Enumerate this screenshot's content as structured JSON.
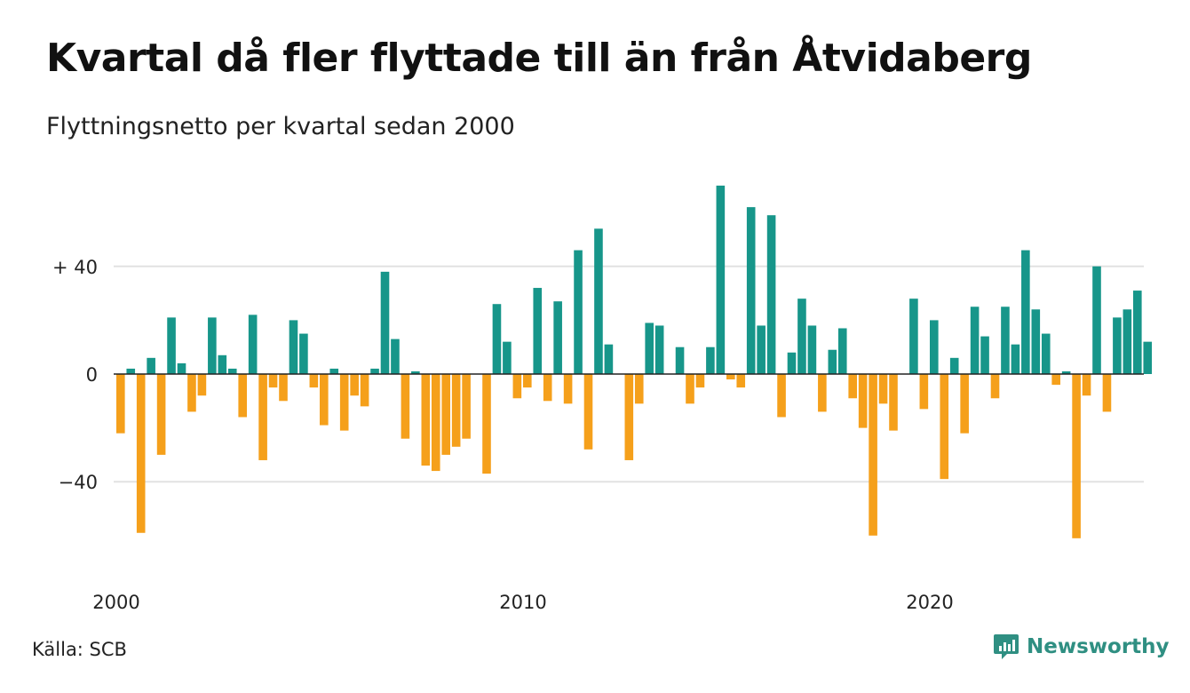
{
  "header": {
    "title": "Kvartal då fler flyttade till än från Åtvidaberg",
    "subtitle": "Flyttningsnetto per kvartal sedan 2000"
  },
  "footer": {
    "source": "Källa: SCB",
    "brand": "Newsworthy",
    "brand_icon": "newsworthy-chart-logo-icon"
  },
  "colors": {
    "positive": "#17968a",
    "negative": "#f5a01b",
    "grid": "#e2e2e2",
    "zero_line": "#222222",
    "text": "#111111",
    "brand": "#2f8f82"
  },
  "chart_data": {
    "type": "bar",
    "title": "Kvartal då fler flyttade till än från Åtvidaberg",
    "subtitle": "Flyttningsnetto per kvartal sedan 2000",
    "x_unit": "quarter",
    "start": "2000-Q1",
    "x_tick_labels": [
      "2000",
      "2010",
      "2020"
    ],
    "y_ticks": [
      {
        "value": 40,
        "label": "+ 40"
      },
      {
        "value": 0,
        "label": "0"
      },
      {
        "value": -40,
        "label": "−40"
      }
    ],
    "ylim": [
      -66,
      72
    ],
    "grid": true,
    "values": [
      -22,
      2,
      -59,
      6,
      -30,
      21,
      4,
      -14,
      -8,
      21,
      7,
      2,
      -16,
      22,
      -32,
      -5,
      -10,
      20,
      15,
      -5,
      -19,
      2,
      -21,
      -8,
      -12,
      2,
      38,
      13,
      -24,
      1,
      -34,
      -36,
      -30,
      -27,
      -24,
      0,
      -37,
      26,
      12,
      -9,
      -5,
      32,
      -10,
      27,
      -11,
      46,
      -28,
      54,
      11,
      0,
      -32,
      -11,
      19,
      18,
      0,
      10,
      -11,
      -5,
      10,
      70,
      -2,
      -5,
      62,
      18,
      59,
      -16,
      8,
      28,
      18,
      -14,
      9,
      17,
      -9,
      -20,
      -60,
      -11,
      -21,
      0,
      28,
      -13,
      20,
      -39,
      6,
      -22,
      25,
      14,
      -9,
      25,
      11,
      46,
      24,
      15,
      -4,
      1,
      -61,
      -8,
      40,
      -14,
      21,
      24,
      31,
      12
    ]
  }
}
